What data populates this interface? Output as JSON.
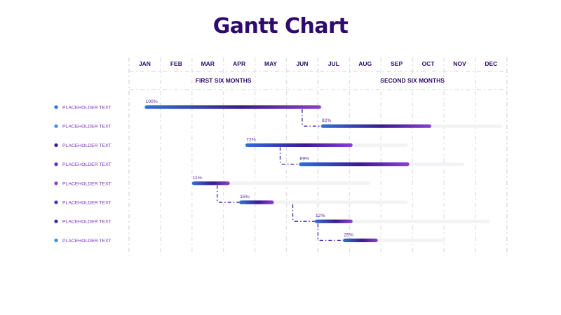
{
  "title": "Gantt Chart",
  "colors": {
    "title": "#2e0a6e",
    "header_text": "#2e0a6e",
    "label_text": "#7b2fc4",
    "percent_text": "#5a1ea8",
    "grid": "#dcdce4",
    "track": "#f3f3f6",
    "bar_start": "#2f6fd6",
    "bar_mid": "#3a1c8c",
    "bar_end": "#8b3fd1",
    "connector": "#4f2bb0"
  },
  "chart_data": {
    "type": "gantt",
    "title": "Gantt Chart",
    "months": [
      "JAN",
      "FEB",
      "MAR",
      "APR",
      "MAY",
      "JUN",
      "JUL",
      "AUG",
      "SEP",
      "OCT",
      "NOV",
      "DEC"
    ],
    "periods": [
      {
        "label": "FIRST SIX MONTHS",
        "start_month": 0,
        "end_month": 6
      },
      {
        "label": "SECOND SIX MONTHS",
        "start_month": 6,
        "end_month": 12
      }
    ],
    "tasks": [
      {
        "label": "PLACEHOLDER TEXT",
        "dot_color": "#2f6fd6",
        "start": 0.5,
        "end": 6.1,
        "track_end": 6.1,
        "percent": "100%"
      },
      {
        "label": "PLACEHOLDER TEXT",
        "dot_color": "#3a8ee8",
        "start": 6.1,
        "end": 9.6,
        "track_end": 11.8,
        "percent": "82%"
      },
      {
        "label": "PLACEHOLDER TEXT",
        "dot_color": "#3a1c8c",
        "start": 3.7,
        "end": 7.1,
        "track_end": 8.8,
        "percent": "72%"
      },
      {
        "label": "PLACEHOLDER TEXT",
        "dot_color": "#5a2fc0",
        "start": 5.4,
        "end": 8.9,
        "track_end": 10.6,
        "percent": "69%"
      },
      {
        "label": "PLACEHOLDER TEXT",
        "dot_color": "#8b3fd1",
        "start": 2.0,
        "end": 3.2,
        "track_end": 7.6,
        "percent": "11%"
      },
      {
        "label": "PLACEHOLDER TEXT",
        "dot_color": "#4a2fb0",
        "start": 3.5,
        "end": 4.6,
        "track_end": 8.8,
        "percent": "15%"
      },
      {
        "label": "PLACEHOLDER TEXT",
        "dot_color": "#3a2aa0",
        "start": 5.9,
        "end": 7.1,
        "track_end": 11.4,
        "percent": "12%"
      },
      {
        "label": "PLACEHOLDER TEXT",
        "dot_color": "#3a8ee8",
        "start": 6.8,
        "end": 7.9,
        "track_end": 10.0,
        "percent": "25%"
      }
    ],
    "dependencies": [
      {
        "from": 0,
        "to": 1,
        "x_month": 5.5
      },
      {
        "from": 2,
        "to": 3,
        "x_month": 4.8
      },
      {
        "from": 4,
        "to": 5,
        "x_month": 2.8
      },
      {
        "from": 5,
        "to": 6,
        "x_month": 5.2
      },
      {
        "from": 6,
        "to": 7,
        "x_month": 6.0
      }
    ]
  }
}
